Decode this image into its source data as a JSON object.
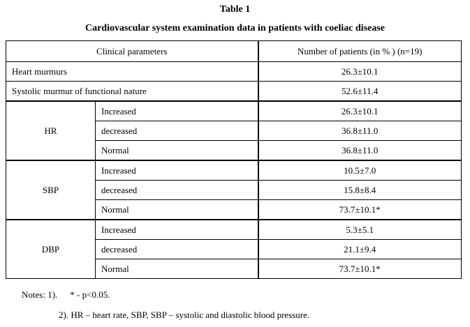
{
  "title": "Table 1",
  "subtitle": "Cardiovascular system examination data in patients with coeliac disease",
  "table": {
    "headers": [
      "Clinical parameters",
      "Number of patients (in % ) (n=19)"
    ],
    "rows": [
      {
        "label": "Heart murmurs",
        "value": "26.3±10.1"
      },
      {
        "label": "Systolic murmur of functional nature",
        "value": "52.6±11.4"
      }
    ],
    "groups": [
      {
        "label": "HR",
        "rows": [
          {
            "label": "Increased",
            "value": "26.3±10.1"
          },
          {
            "label": "decreased",
            "value": "36.8±11.0"
          },
          {
            "label": "Normal",
            "value": "36.8±11.0"
          }
        ]
      },
      {
        "label": "SBP",
        "rows": [
          {
            "label": "Increased",
            "value": "10.5±7.0"
          },
          {
            "label": "decreased",
            "value": "15.8±8.4"
          },
          {
            "label": "Normal",
            "value": "73.7±10.1*"
          }
        ]
      },
      {
        "label": "DBP",
        "rows": [
          {
            "label": "Increased",
            "value": "5.3±5.1"
          },
          {
            "label": "decreased",
            "value": "21.1±9.4"
          },
          {
            "label": "Normal",
            "value": "73.7±10.1*"
          }
        ]
      }
    ]
  },
  "notes": {
    "prefix": "Notes: 1).",
    "note1": "* - p<0.05.",
    "note2": "2). HR – heart rate, SBP, SBP – systolic and diastolic blood pressure."
  }
}
